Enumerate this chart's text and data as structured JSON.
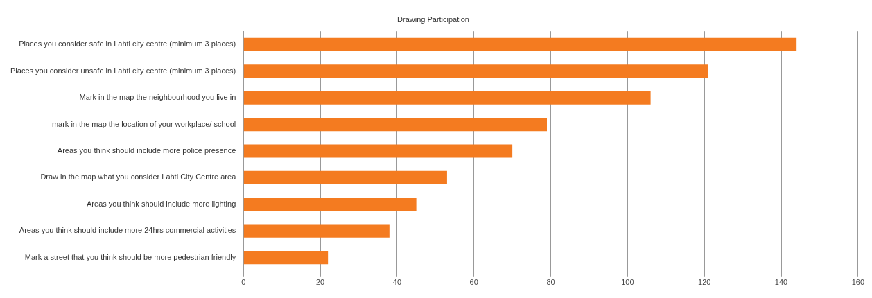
{
  "chart_data": {
    "type": "bar",
    "orientation": "horizontal",
    "title": "Drawing Participation",
    "categories": [
      "Places you consider safe in Lahti city centre (minimum 3 places)",
      "Places you consider unsafe in Lahti city centre (minimum 3 places)",
      "Mark in the map the neighbourhood you live in",
      "mark in the map the location of your workplace/ school",
      "Areas you think should include more police presence",
      "Draw in the map what you consider Lahti City Centre area",
      "Areas you think should include more lighting",
      "Areas you think should include more 24hrs commercial activities",
      "Mark a street that you think should be more pedestrian friendly"
    ],
    "values": [
      144,
      121,
      106,
      79,
      70,
      53,
      45,
      38,
      22
    ],
    "color": "#f47b20",
    "xlim": [
      0,
      160
    ],
    "xticks": [
      0,
      20,
      40,
      60,
      80,
      100,
      120,
      140,
      160
    ],
    "grid": "x",
    "legend": false
  }
}
